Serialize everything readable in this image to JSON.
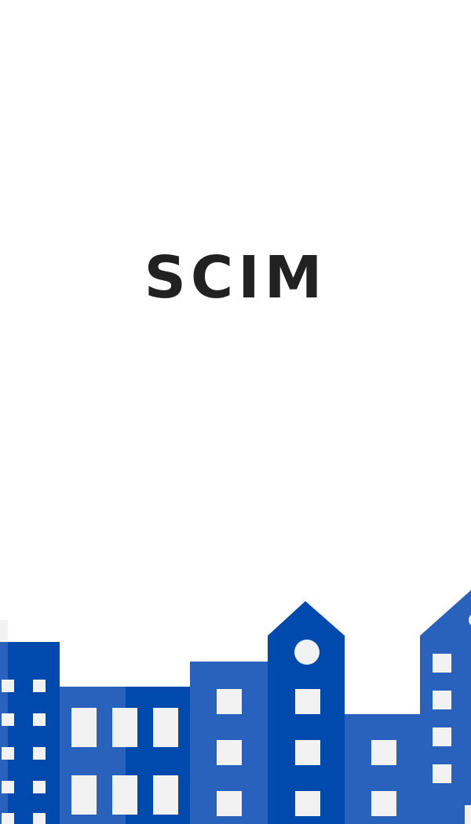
{
  "app": {
    "title": "SCIM"
  },
  "illustration": {
    "icon": "city-skyline-icon",
    "colors": {
      "building_dark": "#0049ad",
      "building_light": "#2962bd",
      "window": "#f2f2f2",
      "background": "#ffffff",
      "title_text": "#212121"
    }
  }
}
